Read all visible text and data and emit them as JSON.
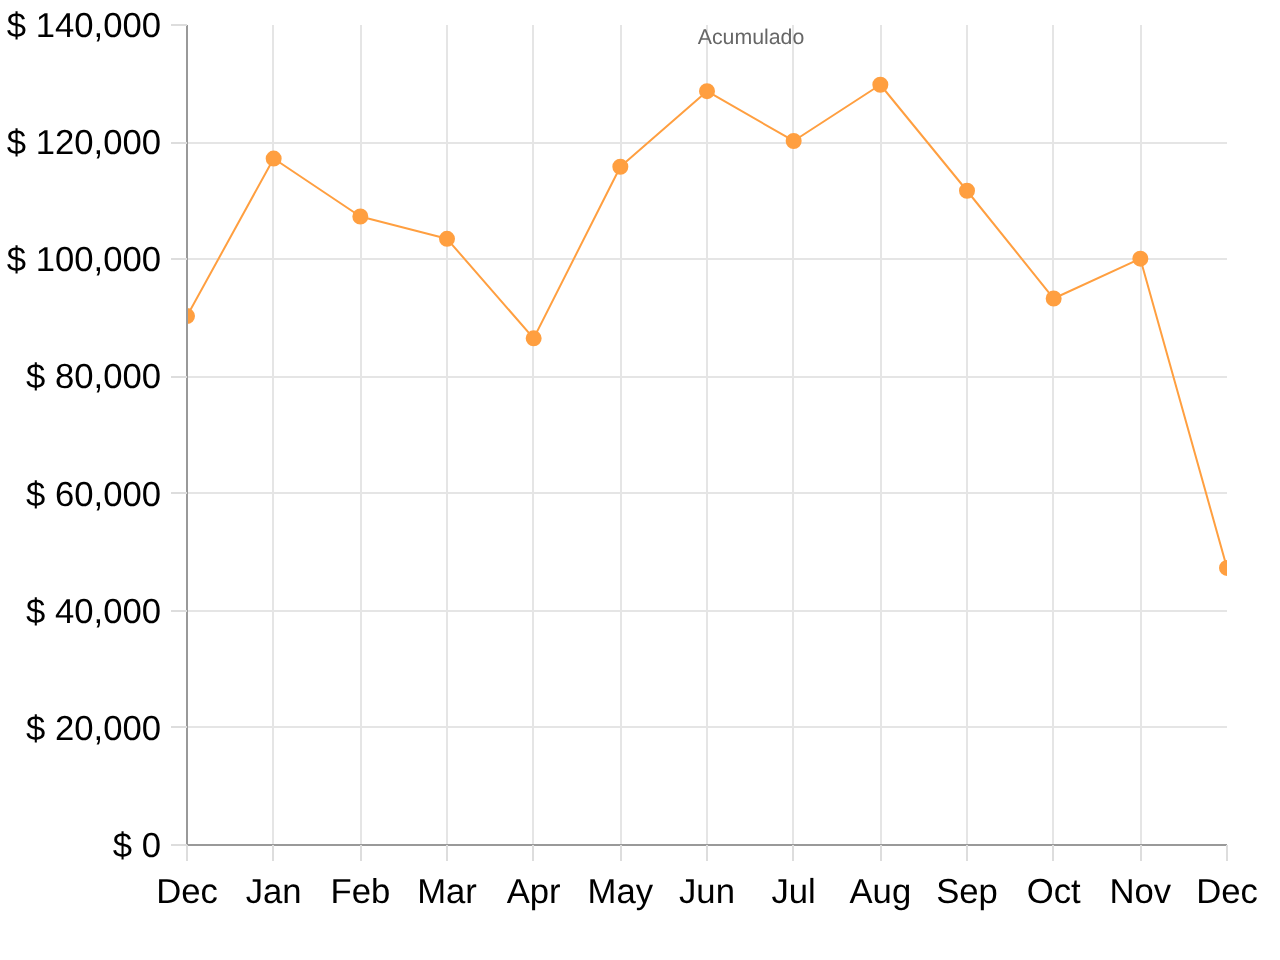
{
  "chart_data": {
    "type": "line",
    "categories": [
      "Dec",
      "Jan",
      "Feb",
      "Mar",
      "Apr",
      "May",
      "Jun",
      "Jul",
      "Aug",
      "Sep",
      "Oct",
      "Nov",
      "Dec"
    ],
    "series": [
      {
        "name": "Acumulado",
        "color": "#ff9f40",
        "values": [
          90300,
          117200,
          107300,
          103500,
          86500,
          115800,
          128700,
          120200,
          129800,
          111700,
          93300,
          100100,
          47300
        ]
      }
    ],
    "ylim": [
      0,
      140000
    ],
    "yticks": [
      {
        "value": 0,
        "label": "$ 0"
      },
      {
        "value": 20000,
        "label": "$ 20,000"
      },
      {
        "value": 40000,
        "label": "$ 40,000"
      },
      {
        "value": 60000,
        "label": "$ 60,000"
      },
      {
        "value": 80000,
        "label": "$ 80,000"
      },
      {
        "value": 100000,
        "label": "$ 100,000"
      },
      {
        "value": 120000,
        "label": "$ 120,000"
      },
      {
        "value": 140000,
        "label": "$ 140,000"
      }
    ],
    "grid": true,
    "legend": "top",
    "marker": "circle",
    "line_style": "solid"
  }
}
